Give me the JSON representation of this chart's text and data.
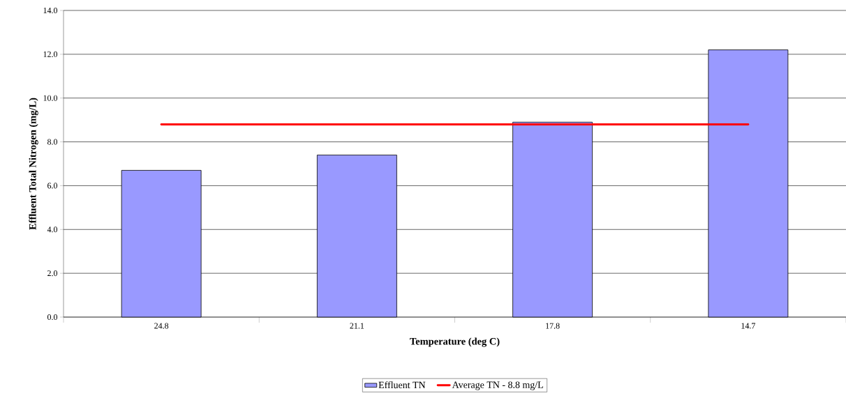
{
  "chart_data": {
    "type": "bar",
    "xlabel": "Temperature (deg C)",
    "ylabel": "Effluent Total Nitrogen (mg/L)",
    "categories": [
      "24.8",
      "21.1",
      "17.8",
      "14.7"
    ],
    "series": [
      {
        "name": "Effluent TN",
        "color": "#9999ff",
        "values": [
          6.7,
          7.4,
          8.9,
          12.2
        ]
      },
      {
        "name": "Average TN - 8.8 mg/L",
        "type": "line",
        "color": "#ff0000",
        "values": [
          8.8,
          8.8,
          8.8,
          8.8
        ]
      }
    ],
    "ylim": [
      0,
      14
    ],
    "yticks": [
      {
        "value": 0,
        "label": "0.0"
      },
      {
        "value": 2,
        "label": "2.0"
      },
      {
        "value": 4,
        "label": "4.0"
      },
      {
        "value": 6,
        "label": "6.0"
      },
      {
        "value": 8,
        "label": "8.0"
      },
      {
        "value": 10,
        "label": "10.0"
      },
      {
        "value": 12,
        "label": "12.0"
      },
      {
        "value": 14,
        "label": "14.0"
      }
    ],
    "grid": "y",
    "legend": "bottom"
  }
}
